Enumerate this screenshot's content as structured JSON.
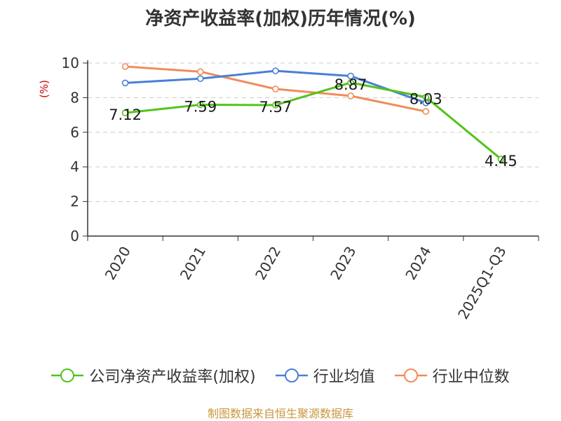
{
  "title": "净资产收益率(加权)历年情况(%)",
  "source": "制图数据来自恒生聚源数据库",
  "colors": {
    "company": "#52c41a",
    "industry_avg": "#4a7fd6",
    "industry_median": "#f08c5a",
    "unit": "#cc0000"
  },
  "chart_data": {
    "type": "line",
    "title": "净资产收益率(加权)历年情况(%)",
    "xlabel": "",
    "ylabel": "(%)",
    "categories": [
      "2020",
      "2021",
      "2022",
      "2023",
      "2024",
      "2025Q1-Q3"
    ],
    "ylim": [
      0,
      10
    ],
    "yticks": [
      0,
      2,
      4,
      6,
      8,
      10
    ],
    "grid": true,
    "legend": "bottom",
    "series": [
      {
        "name": "公司净资产收益率(加权)",
        "values": [
          7.12,
          7.59,
          7.57,
          8.87,
          8.03,
          4.45
        ],
        "labels": [
          "7.12",
          "7.59",
          "7.57",
          "8.87",
          "8.03",
          "4.45"
        ]
      },
      {
        "name": "行业均值",
        "values": [
          8.85,
          9.1,
          9.55,
          9.25,
          7.7,
          null
        ]
      },
      {
        "name": "行业中位数",
        "values": [
          9.8,
          9.5,
          8.5,
          8.1,
          7.2,
          null
        ]
      }
    ]
  }
}
